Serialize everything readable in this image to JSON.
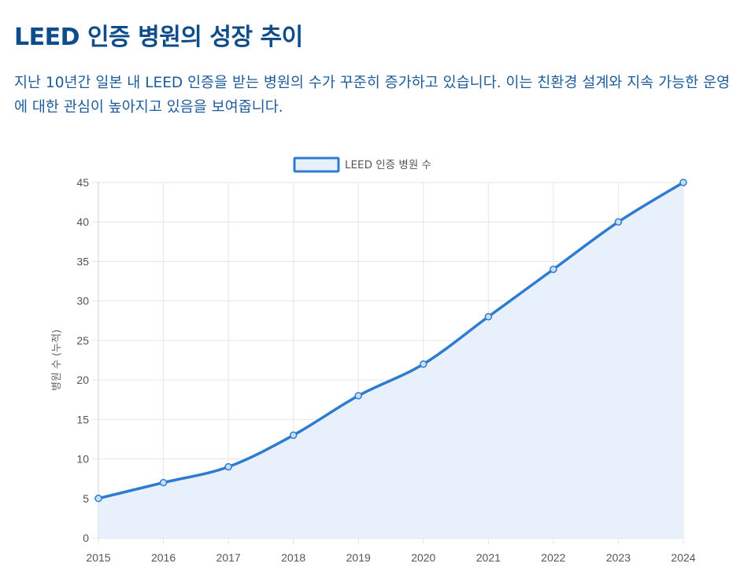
{
  "title": "LEED 인증 병원의 성장 추이",
  "description": "지난 10년간 일본 내 LEED 인증을 받는 병원의 수가 꾸준히 증가하고 있습니다. 이는 친환경 설계와 지속 가능한 운영에 대한 관심이 높아지고 있음을 보여줍니다.",
  "colors": {
    "line": "#2f7bd0",
    "fill": "#e8f1fb",
    "grid": "#e6e6e6",
    "title": "#0f4c8a",
    "text": "#1f5b99"
  },
  "chart_data": {
    "type": "area",
    "x": [
      "2015",
      "2016",
      "2017",
      "2018",
      "2019",
      "2020",
      "2021",
      "2022",
      "2023",
      "2024"
    ],
    "series": [
      {
        "name": "LEED 인증 병원 수",
        "values": [
          5,
          7,
          9,
          13,
          18,
          22,
          28,
          34,
          40,
          45
        ]
      }
    ],
    "ylabel": "병원 수 (누적)",
    "xlabel": "",
    "ylim": [
      0,
      45
    ],
    "yticks": [
      0,
      5,
      10,
      15,
      20,
      25,
      30,
      35,
      40,
      45
    ],
    "grid": true,
    "legend": "top-center"
  }
}
